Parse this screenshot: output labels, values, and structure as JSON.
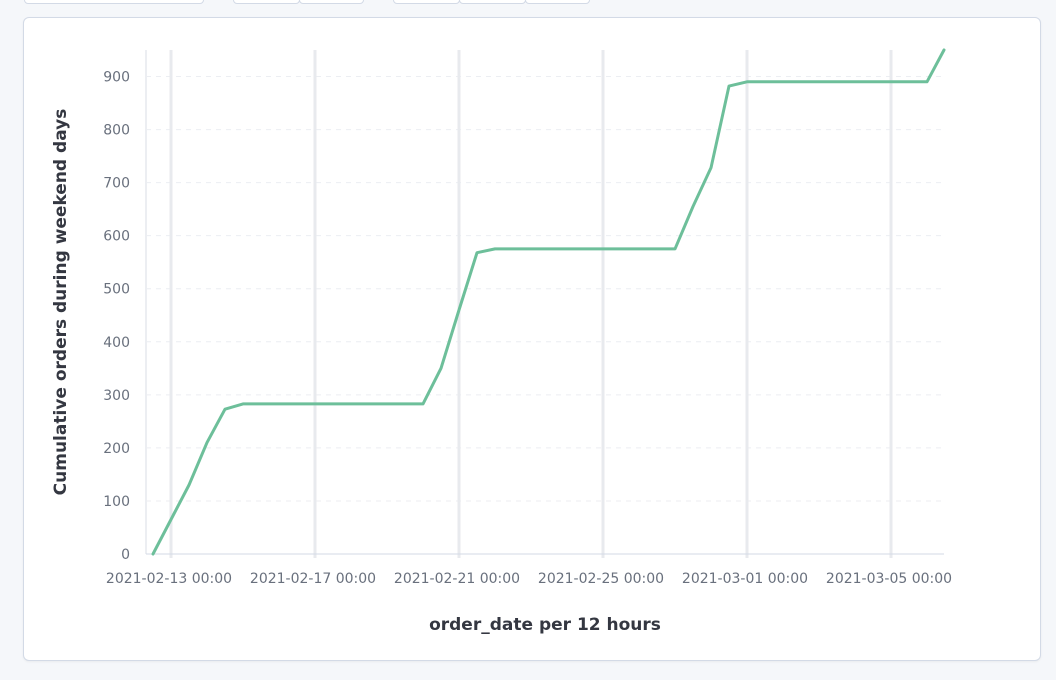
{
  "colors": {
    "series": "#6dbf9a",
    "grid_major": "#e8eaee",
    "grid_minor": "#eceef2",
    "axis": "#d3dae6"
  },
  "chart_data": {
    "type": "line",
    "title": "",
    "xlabel": "order_date per 12 hours",
    "ylabel": "Cumulative orders during weekend days",
    "ylim": [
      0,
      950
    ],
    "xlim": [
      "2021-02-12 18:00",
      "2021-03-06 18:00"
    ],
    "y_ticks": [
      0,
      100,
      200,
      300,
      400,
      500,
      600,
      700,
      800,
      900
    ],
    "x_ticks": [
      "2021-02-13 00:00",
      "2021-02-17 00:00",
      "2021-02-21 00:00",
      "2021-02-25 00:00",
      "2021-03-01 00:00",
      "2021-03-05 00:00"
    ],
    "grid": true,
    "legend": "none",
    "series": [
      {
        "x": [
          "2021-02-12 12:00",
          "2021-02-13 00:00",
          "2021-02-13 12:00",
          "2021-02-14 00:00",
          "2021-02-14 12:00",
          "2021-02-15 00:00",
          "2021-02-20 00:00",
          "2021-02-20 12:00",
          "2021-02-21 00:00",
          "2021-02-21 12:00",
          "2021-02-22 00:00",
          "2021-02-27 00:00",
          "2021-02-27 12:00",
          "2021-02-28 00:00",
          "2021-02-28 12:00",
          "2021-03-01 00:00",
          "2021-03-06 00:00",
          "2021-03-06 12:00"
        ],
        "y": [
          0,
          65,
          130,
          210,
          273,
          283,
          283,
          350,
          460,
          568,
          575,
          575,
          655,
          728,
          882,
          890,
          890,
          955
        ]
      }
    ]
  }
}
